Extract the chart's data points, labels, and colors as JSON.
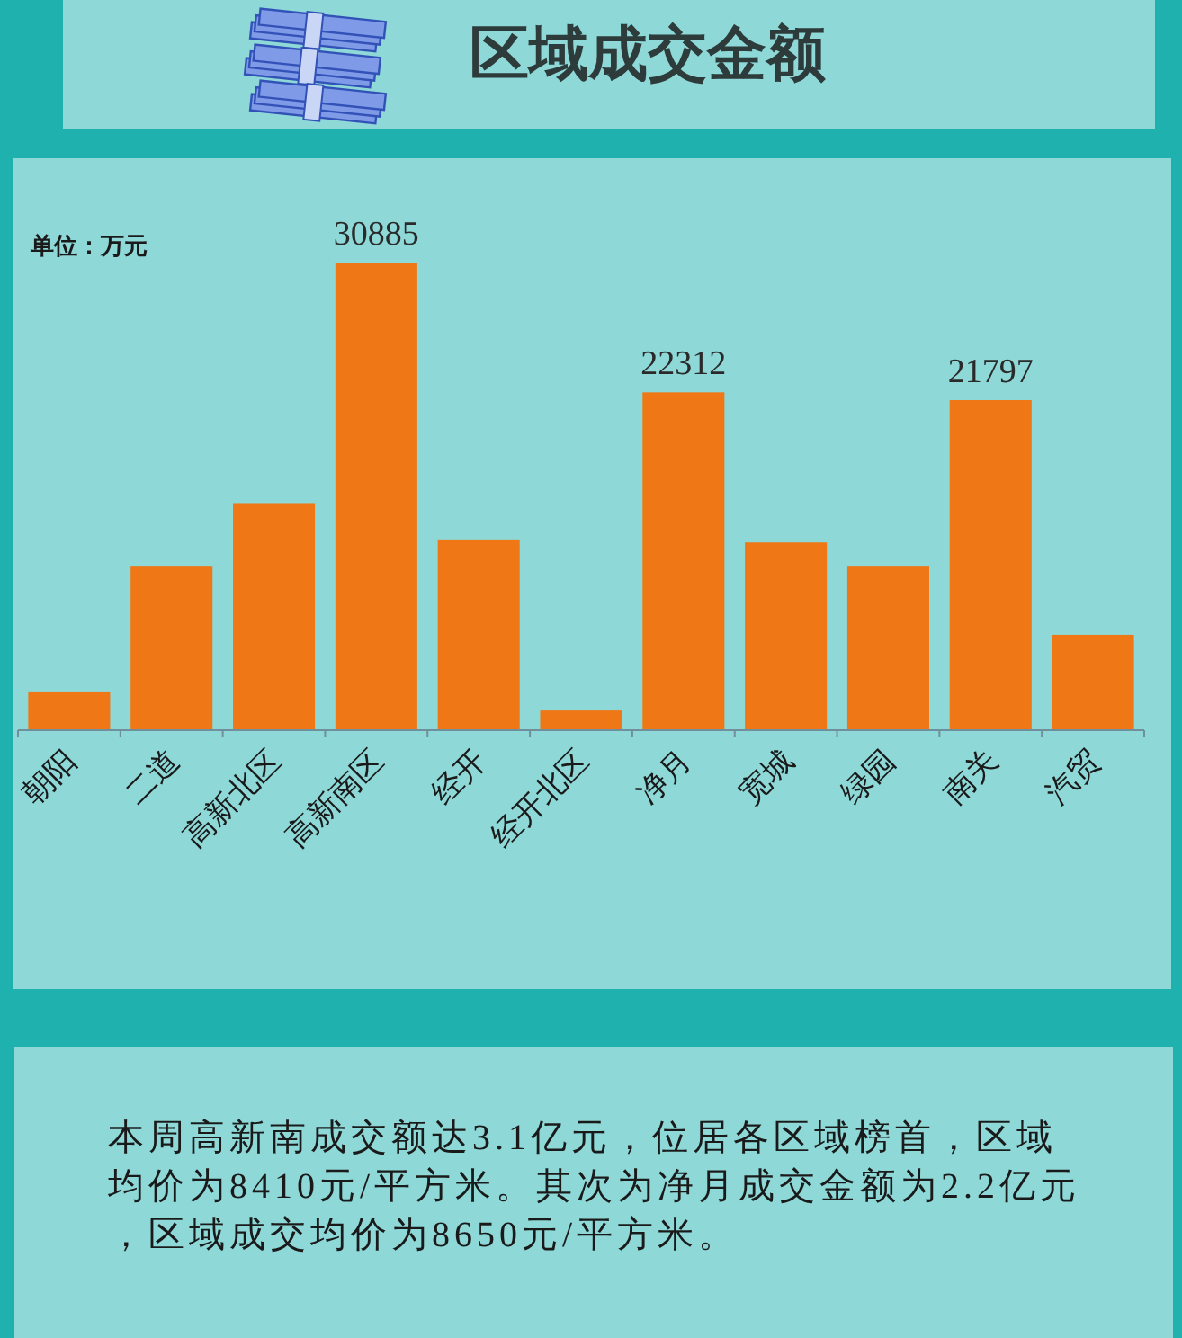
{
  "chart_data": {
    "type": "bar",
    "title": "区域成交金额",
    "annotations": [
      "单位：万元",
      "本周高新南成交额达3.1亿元，位居各区域榜首，区域均价为8410元/平方米。其次为净月成交金额为2.2亿元，区域成交均价为8650元/平方米。"
    ],
    "categories": [
      "朝阳",
      "二道",
      "高新北区",
      "高新南区",
      "经开",
      "经开北区",
      "净月",
      "宽城",
      "绿园",
      "南关",
      "汽贸"
    ],
    "values": [
      2500,
      10800,
      15000,
      30885,
      12600,
      1300,
      22312,
      12400,
      10800,
      21797,
      6300
    ],
    "value_labels": [
      null,
      null,
      null,
      "30885",
      null,
      null,
      "22312",
      null,
      null,
      "21797",
      null
    ],
    "color": "#f07716"
  }
}
